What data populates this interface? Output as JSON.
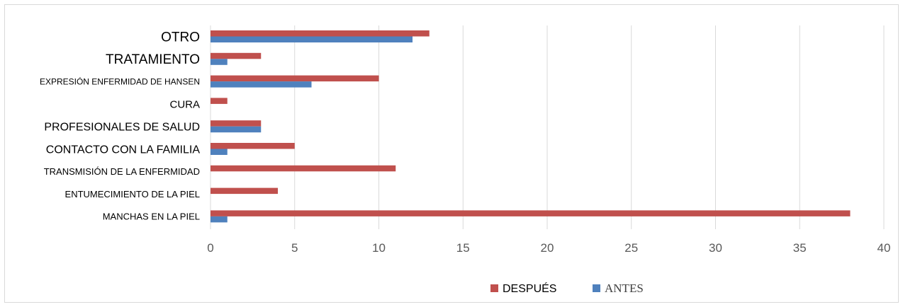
{
  "chart_data": {
    "type": "bar",
    "orientation": "horizontal",
    "categories": [
      "OTRO",
      "TRATAMIENTO",
      "EXPRESIÓN ENFERMIDAD DE HANSEN",
      "CURA",
      "PROFESIONALES DE SALUD",
      "CONTACTO CON LA FAMILIA",
      "TRANSMISIÓN DE LA ENFERMIDAD",
      "ENTUMECIMIENTO DE LA PIEL",
      "MANCHAS EN LA PIEL"
    ],
    "series": [
      {
        "name": "DESPUÉS",
        "color": "#c0504d",
        "values": [
          13,
          3,
          10,
          1,
          3,
          5,
          11,
          4,
          38
        ]
      },
      {
        "name": "ANTES",
        "color": "#4f81bd",
        "values": [
          12,
          1,
          6,
          0,
          3,
          1,
          0,
          0,
          1
        ]
      }
    ],
    "x_ticks": [
      "0",
      "5",
      "10",
      "15",
      "20",
      "25",
      "30",
      "35",
      "40"
    ],
    "xlim": [
      0,
      40
    ],
    "grid": "vertical",
    "legend_position": "bottom",
    "title": "",
    "xlabel": "",
    "ylabel": ""
  }
}
